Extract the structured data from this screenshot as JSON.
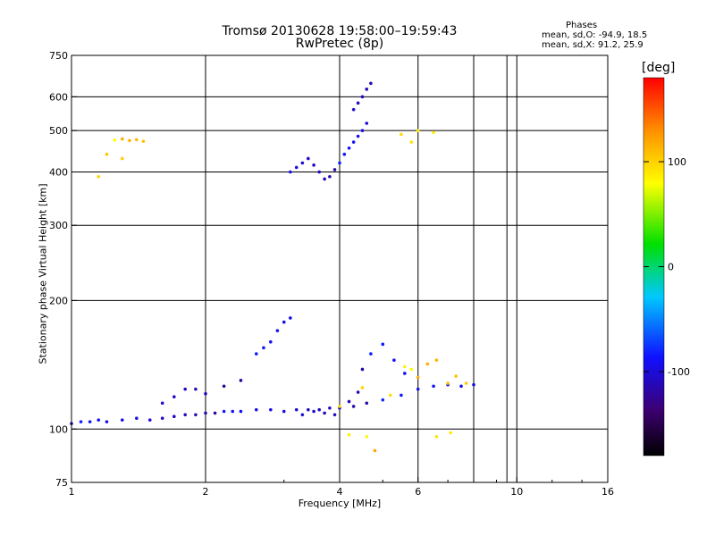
{
  "header": {
    "title": "Tromsø 20130628 19:58:00–19:59:43",
    "subtitle": "RwPretec (8p)",
    "stats_title": "Phases",
    "stats_o": "mean, sd,O: -94.9, 18.5",
    "stats_x": "mean, sd,X:  91.2, 25.9"
  },
  "chart_data": {
    "type": "scatter",
    "title": "Tromsø 20130628 19:58:00–19:59:43",
    "subtitle": "RwPretec (8p)",
    "xlabel": "Frequency [MHz]",
    "ylabel": "Stationary phase Virtual Height [km]",
    "x_scale": "log",
    "y_scale": "log",
    "xlim": [
      1,
      16
    ],
    "ylim": [
      75,
      750
    ],
    "x_ticks": [
      1,
      2,
      4,
      6,
      10,
      16
    ],
    "y_ticks": [
      75,
      100,
      200,
      300,
      400,
      500,
      600,
      750
    ],
    "x_grid": [
      2,
      4,
      6,
      8,
      9.5,
      10
    ],
    "y_grid": [
      100,
      200,
      300,
      400,
      500,
      600
    ],
    "grid": true,
    "colorbar": {
      "label": "[deg]",
      "range": [
        -180,
        180
      ],
      "ticks": [
        100,
        0,
        -100
      ]
    },
    "series": [
      {
        "name": "O",
        "points": [
          [
            1.0,
            103
          ],
          [
            1.05,
            104
          ],
          [
            1.1,
            104
          ],
          [
            1.15,
            105
          ],
          [
            1.2,
            104
          ],
          [
            1.3,
            105
          ],
          [
            1.4,
            106
          ],
          [
            1.5,
            105
          ],
          [
            1.6,
            106
          ],
          [
            1.7,
            107
          ],
          [
            1.8,
            108
          ],
          [
            1.9,
            108
          ],
          [
            2.0,
            109
          ],
          [
            2.1,
            109
          ],
          [
            2.2,
            110
          ],
          [
            2.3,
            110
          ],
          [
            2.4,
            110
          ],
          [
            2.6,
            111
          ],
          [
            2.8,
            111
          ],
          [
            3.0,
            110
          ],
          [
            3.2,
            111
          ],
          [
            3.4,
            111
          ],
          [
            3.6,
            111
          ],
          [
            3.8,
            112
          ],
          [
            4.0,
            112
          ],
          [
            4.3,
            113
          ],
          [
            4.6,
            115
          ],
          [
            5.0,
            117
          ],
          [
            5.5,
            120
          ],
          [
            6.0,
            124
          ],
          [
            6.5,
            126
          ],
          [
            7.0,
            127
          ],
          [
            7.5,
            126
          ],
          [
            8.0,
            127
          ],
          [
            1.6,
            115
          ],
          [
            1.7,
            119
          ],
          [
            1.8,
            124
          ],
          [
            1.9,
            124
          ],
          [
            2.0,
            121
          ],
          [
            2.2,
            126
          ],
          [
            2.4,
            130
          ],
          [
            2.6,
            150
          ],
          [
            2.7,
            155
          ],
          [
            2.8,
            160
          ],
          [
            2.9,
            170
          ],
          [
            3.0,
            178
          ],
          [
            3.1,
            182
          ],
          [
            3.3,
            108
          ],
          [
            3.5,
            110
          ],
          [
            3.7,
            109
          ],
          [
            3.9,
            108
          ],
          [
            4.2,
            116
          ],
          [
            4.4,
            122
          ],
          [
            4.5,
            138
          ],
          [
            4.7,
            150
          ],
          [
            5.0,
            158
          ],
          [
            5.3,
            145
          ],
          [
            5.6,
            135
          ],
          [
            3.1,
            400
          ],
          [
            3.2,
            410
          ],
          [
            3.3,
            420
          ],
          [
            3.4,
            430
          ],
          [
            3.5,
            415
          ],
          [
            3.6,
            400
          ],
          [
            3.7,
            385
          ],
          [
            3.8,
            390
          ],
          [
            3.9,
            405
          ],
          [
            4.0,
            420
          ],
          [
            4.1,
            440
          ],
          [
            4.2,
            455
          ],
          [
            4.3,
            470
          ],
          [
            4.4,
            485
          ],
          [
            4.5,
            500
          ],
          [
            4.6,
            520
          ],
          [
            4.3,
            560
          ],
          [
            4.4,
            580
          ],
          [
            4.5,
            600
          ],
          [
            4.6,
            625
          ],
          [
            4.7,
            645
          ]
        ]
      },
      {
        "name": "X",
        "points": [
          [
            1.25,
            475
          ],
          [
            1.3,
            478
          ],
          [
            1.35,
            474
          ],
          [
            1.4,
            476
          ],
          [
            1.45,
            472
          ],
          [
            1.2,
            440
          ],
          [
            1.3,
            430
          ],
          [
            1.15,
            390
          ],
          [
            5.5,
            490
          ],
          [
            5.8,
            470
          ],
          [
            6.0,
            500
          ],
          [
            6.5,
            495
          ],
          [
            5.6,
            140
          ],
          [
            5.8,
            138
          ],
          [
            6.0,
            132
          ],
          [
            6.3,
            142
          ],
          [
            6.6,
            145
          ],
          [
            7.0,
            128
          ],
          [
            7.3,
            133
          ],
          [
            7.7,
            128
          ],
          [
            4.0,
            113
          ],
          [
            4.5,
            125
          ],
          [
            5.2,
            120
          ],
          [
            6.6,
            96
          ],
          [
            7.1,
            98
          ],
          [
            4.2,
            97
          ],
          [
            4.6,
            96
          ],
          [
            4.8,
            89
          ]
        ]
      }
    ]
  }
}
